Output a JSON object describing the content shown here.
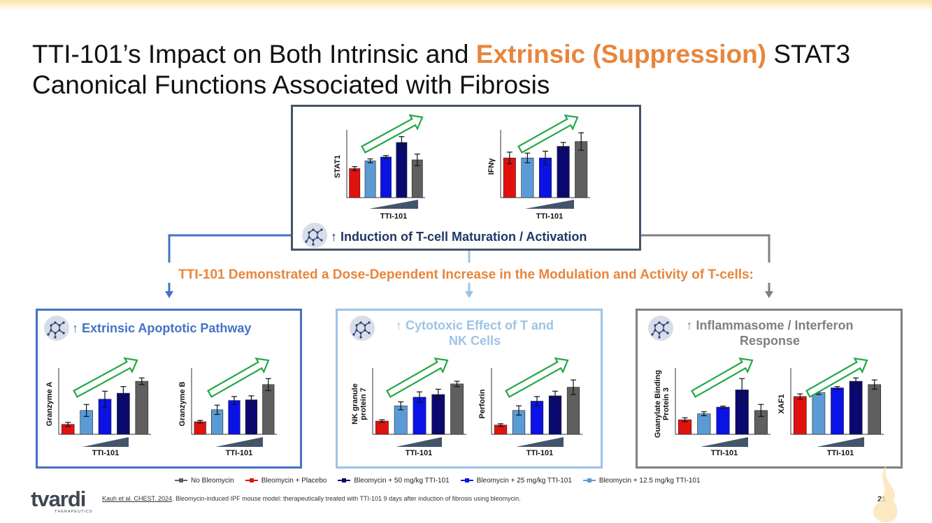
{
  "title": {
    "part1": "TTI-101’s Impact on Both Intrinsic and ",
    "highlight": "Extrinsic (Suppression)",
    "part2": " STAT3 Canonical Functions Associated with Fibrosis"
  },
  "colors": {
    "accent": "#e8853d",
    "dark_border": "#44546a",
    "blue_border": "#4472c4",
    "lightblue_border": "#9dc3e6",
    "gray_border": "#808080",
    "arrow_green": "#22a846"
  },
  "panels": {
    "top": {
      "label": "↑ Induction of T-cell Maturation / Activation",
      "icon": "molecule-icon"
    },
    "left": {
      "label": "↑ Extrinsic Apoptotic Pathway",
      "icon": "molecule-icon"
    },
    "mid": {
      "label_line1": "↑ Cytotoxic Effect of T and",
      "label_line2": "NK Cells",
      "icon": "molecule-icon"
    },
    "right": {
      "label_line1": "↑ Inflammasome / Interferon",
      "label_line2": "Response",
      "icon": "molecule-icon"
    }
  },
  "demonstrated": "TTI-101 Demonstrated a Dose-Dependent Increase in the Modulation and Activity of T-cells:",
  "series_colors": [
    "#e0120e",
    "#5b9bd5",
    "#0b12e6",
    "#0b0970",
    "#5f5f5f"
  ],
  "chart_data": [
    {
      "type": "bar",
      "ylabel": "STAT1",
      "xlabel": "TTI-101",
      "values": [
        0.3,
        0.38,
        0.42,
        0.57,
        0.39
      ],
      "errors": [
        0.02,
        0.02,
        0.015,
        0.06,
        0.06
      ],
      "ylim": [
        0,
        0.7
      ]
    },
    {
      "type": "bar",
      "ylabel": "IFNγ",
      "xlabel": "TTI-101",
      "values": [
        0.41,
        0.41,
        0.41,
        0.53,
        0.58
      ],
      "errors": [
        0.06,
        0.05,
        0.07,
        0.04,
        0.09
      ],
      "ylim": [
        0,
        0.7
      ]
    },
    {
      "type": "bar",
      "ylabel": "Granzyme A",
      "xlabel": "TTI-101",
      "values": [
        0.15,
        0.36,
        0.53,
        0.62,
        0.8
      ],
      "errors": [
        0.03,
        0.09,
        0.12,
        0.1,
        0.05
      ],
      "ylim": [
        0,
        1
      ]
    },
    {
      "type": "bar",
      "ylabel": "Granzyme B",
      "xlabel": "TTI-101",
      "values": [
        0.19,
        0.37,
        0.51,
        0.52,
        0.75
      ],
      "errors": [
        0.02,
        0.07,
        0.06,
        0.06,
        0.09
      ],
      "ylim": [
        0,
        1
      ]
    },
    {
      "type": "bar",
      "ylabel": "NK granule protein 7",
      "xlabel": "TTI-101",
      "values": [
        0.2,
        0.43,
        0.56,
        0.6,
        0.76
      ],
      "errors": [
        0.02,
        0.06,
        0.08,
        0.08,
        0.04
      ],
      "ylim": [
        0,
        1
      ]
    },
    {
      "type": "bar",
      "ylabel": "Perforin",
      "xlabel": "TTI-101",
      "values": [
        0.14,
        0.36,
        0.5,
        0.58,
        0.71
      ],
      "errors": [
        0.02,
        0.07,
        0.07,
        0.07,
        0.11
      ],
      "ylim": [
        0,
        1
      ]
    },
    {
      "type": "bar",
      "ylabel": "Guanylate Binding Protein 3",
      "xlabel": "TTI-101",
      "values": [
        0.22,
        0.31,
        0.41,
        0.67,
        0.36
      ],
      "errors": [
        0.03,
        0.03,
        0.015,
        0.17,
        0.09
      ],
      "ylim": [
        0,
        1
      ]
    },
    {
      "type": "bar",
      "ylabel": "XAF1",
      "xlabel": "TTI-101",
      "values": [
        0.57,
        0.63,
        0.7,
        0.8,
        0.75
      ],
      "errors": [
        0.04,
        0.03,
        0.02,
        0.05,
        0.07
      ],
      "ylim": [
        0,
        1
      ]
    }
  ],
  "legend": [
    {
      "label": "No Bleomycin",
      "color": "#5f5f5f"
    },
    {
      "label": "Bleomycin + Placebo",
      "color": "#e0120e"
    },
    {
      "label": "Bleomycin + 50 mg/kg TTI-101",
      "color": "#0b0970"
    },
    {
      "label": "Bleomycin + 25 mg/kg TTI-101",
      "color": "#0b12e6"
    },
    {
      "label": "Bleomycin + 12.5 mg/kg TTI-101",
      "color": "#5b9bd5"
    }
  ],
  "footer": {
    "logo": "tvardi",
    "logo_sub": "THERAPEUTICS",
    "cite_link": "Kauh et al. CHEST. 2024",
    "cite_rest": ". Bleomycin-induced IPF mouse model: therapeutically treated with TTI-101 9 days after induction of fibrosis using bleomycin.",
    "page": "21"
  }
}
